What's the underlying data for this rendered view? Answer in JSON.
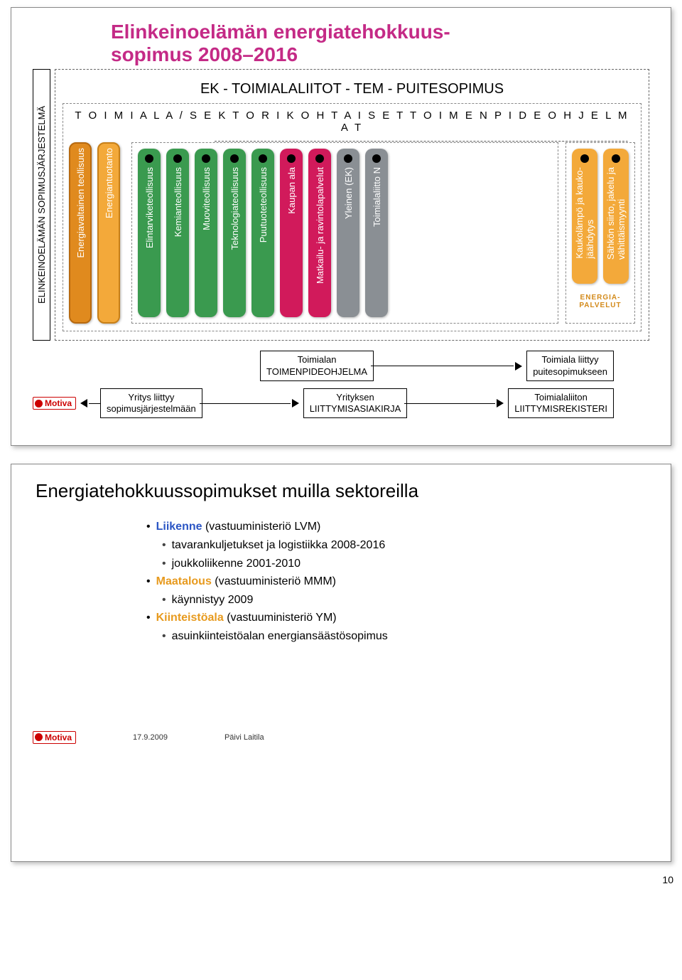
{
  "slide1": {
    "title_color": "#c42a86",
    "title_line1": "Elinkeinoelämän energiatehokkuus-",
    "title_line2": "sopimus 2008–2016",
    "side_label": "ELINKEINOELÄMÄN SOPIMUSJÄRJESTELMÄ",
    "framework_header": "EK - TOIMIALALIITOT - TEM - PUITESOPIMUS",
    "section_header": "T O I M I A L A / S E K T O R I K O H T A I S E T   T O I M E N P I D E O H J E L M A T",
    "orange_bars": [
      {
        "label": "Energiavaltainen teollisuus",
        "bg": "#e08a1e",
        "border": "#b7690f"
      },
      {
        "label": "Energiantuotanto",
        "bg": "#f3a93a",
        "border": "#c77f18"
      }
    ],
    "mid_bars": [
      {
        "label": "Elintarviketeollisuus",
        "bg": "#3a9a4f"
      },
      {
        "label": "Kemianteollisuus",
        "bg": "#3a9a4f"
      },
      {
        "label": "Muoviteollisuus",
        "bg": "#3a9a4f"
      },
      {
        "label": "Teknologiateollisuus",
        "bg": "#3a9a4f"
      },
      {
        "label": "Puutuoteteollisuus",
        "bg": "#3a9a4f"
      },
      {
        "label": "Kaupan ala",
        "bg": "#d11a5b"
      },
      {
        "label": "Matkailu- ja ravintolapalvelut",
        "bg": "#d11a5b"
      },
      {
        "label": "Yleinen (EK)",
        "bg": "#8a8f94"
      },
      {
        "label": "Toimialaliitto N",
        "bg": "#8a8f94"
      }
    ],
    "energia_bars": [
      {
        "label1": "Kaukolämpö ja kauko-",
        "label2": "jäähdytys",
        "bg": "#f3a93a"
      },
      {
        "label1": "Sähkön siirto, jakelu ja",
        "label2": "vähittäismyynti",
        "bg": "#f3a93a"
      }
    ],
    "energia_caption_line1": "ENERGIA-",
    "energia_caption_line2": "PALVELUT",
    "energia_caption_color": "#d38a1a",
    "flow": {
      "row1_left": "Toimialan\nTOIMENPIDEOHJELMA",
      "row1_right": "Toimiala liittyy\npuitesopimukseen",
      "row2_left": "Yritys liittyy\nsopimusjärjestelmään",
      "row2_mid": "Yrityksen\nLIITTYMISASIAKIRJA",
      "row2_right": "Toimialaliiton\nLIITTYMISREKISTERI"
    },
    "motiva_label": "Motiva"
  },
  "slide2": {
    "title": "Energiatehokkuussopimukset muilla sektoreilla",
    "bullets": [
      {
        "kw": "Liikenne",
        "kw_color": "#2a55c4",
        "suffix": " (vastuuministeriö LVM)",
        "sub": [
          "tavarankuljetukset ja logistiikka 2008-2016",
          "joukkoliikenne 2001-2010"
        ]
      },
      {
        "kw": "Maatalous",
        "kw_color": "#e79a1e",
        "suffix": " (vastuuministeriö MMM)",
        "sub": [
          "käynnistyy 2009"
        ]
      },
      {
        "kw": "Kiinteistöala",
        "kw_color": "#e79a1e",
        "suffix": " (vastuuministeriö YM)",
        "sub": [
          "asuinkiinteistöalan energiansäästösopimus"
        ]
      }
    ],
    "footer_date": "17.9.2009",
    "footer_author": "Päivi Laitila",
    "page_number": "10"
  }
}
